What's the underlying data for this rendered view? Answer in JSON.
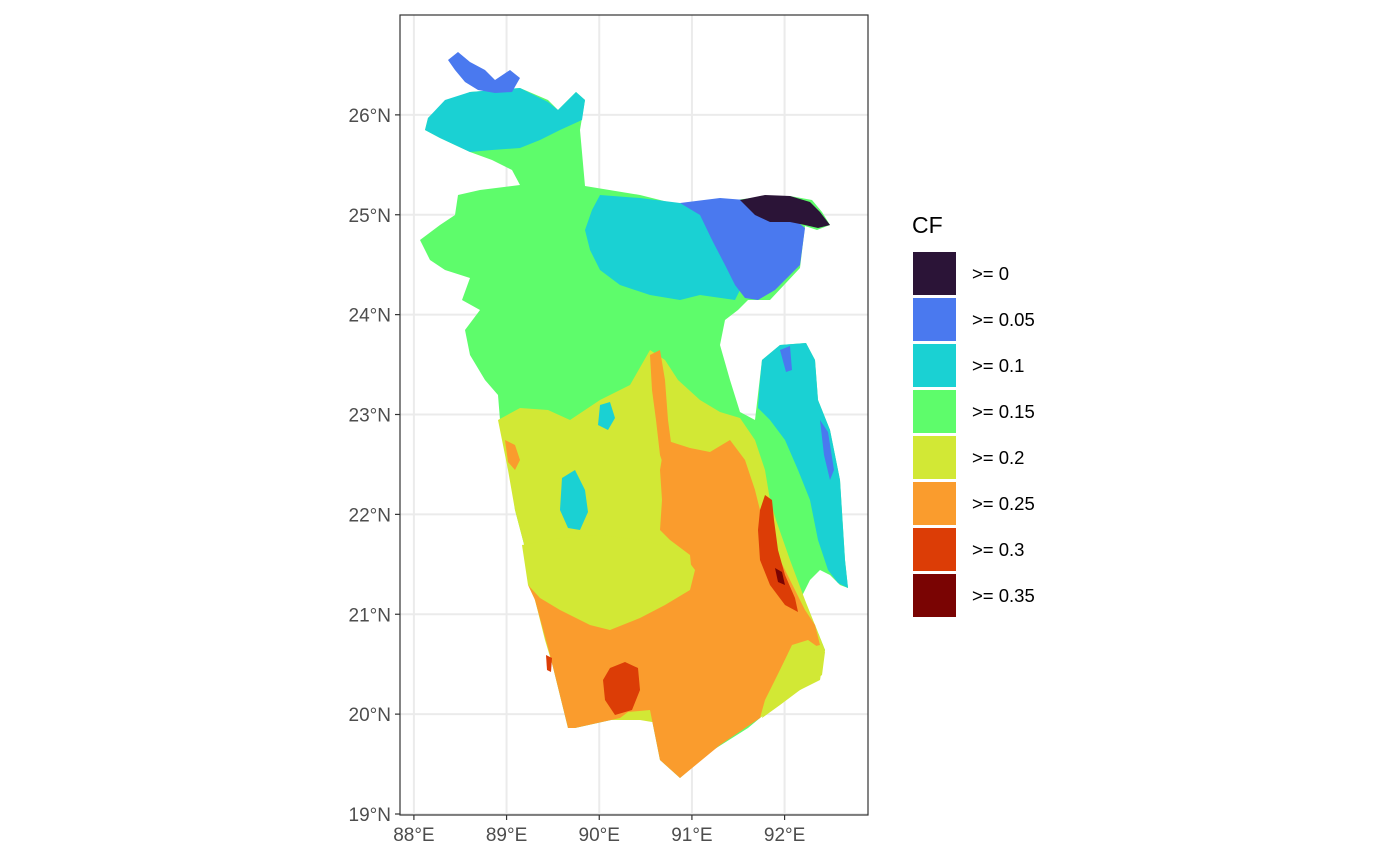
{
  "map": {
    "x_ticks": [
      "88°E",
      "89°E",
      "90°E",
      "91°E",
      "92°E"
    ],
    "y_ticks": [
      "19°N",
      "20°N",
      "21°N",
      "22°N",
      "23°N",
      "24°N",
      "25°N",
      "26°N"
    ],
    "x_tick_values": [
      88,
      89,
      90,
      91,
      92
    ],
    "y_tick_values": [
      19,
      20,
      21,
      22,
      23,
      24,
      25,
      26
    ],
    "xlim": [
      87.85,
      92.9
    ],
    "ylim": [
      18.99,
      27.0
    ],
    "grid": true,
    "panel_background": "#ffffff",
    "grid_color": "#ebebeb",
    "frame_color": "#333333"
  },
  "legend": {
    "title": "CF",
    "position": "right",
    "items": [
      {
        "label": ">= 0",
        "color": "#2b1437"
      },
      {
        "label": ">= 0.05",
        "color": "#4a79ef"
      },
      {
        "label": ">= 0.1",
        "color": "#1ad1d3"
      },
      {
        "label": ">= 0.15",
        "color": "#5efc6b"
      },
      {
        "label": ">= 0.2",
        "color": "#d2e835"
      },
      {
        "label": ">= 0.25",
        "color": "#fa9c2d"
      },
      {
        "label": ">= 0.3",
        "color": "#dc3d06"
      },
      {
        "label": ">= 0.35",
        "color": "#7a0403"
      }
    ]
  }
}
